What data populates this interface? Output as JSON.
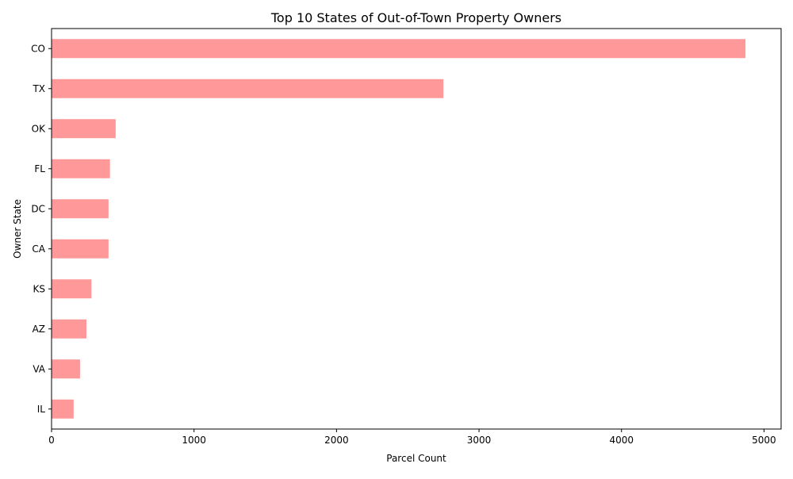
{
  "chart_data": {
    "type": "bar",
    "orientation": "horizontal",
    "title": "Top 10 States of Out-of-Town Property Owners",
    "xlabel": "Parcel Count",
    "ylabel": "Owner State",
    "categories": [
      "CO",
      "TX",
      "OK",
      "FL",
      "DC",
      "CA",
      "KS",
      "AZ",
      "VA",
      "IL"
    ],
    "values": [
      4870,
      2750,
      450,
      410,
      400,
      400,
      280,
      245,
      200,
      155
    ],
    "xlim": [
      0,
      5120
    ],
    "xticks": [
      0,
      1000,
      2000,
      3000,
      4000,
      5000
    ],
    "xtick_labels": [
      "0",
      "1000",
      "2000",
      "3000",
      "4000",
      "5000"
    ],
    "bar_color": "#ff9999",
    "grid": false,
    "legend": "none"
  }
}
